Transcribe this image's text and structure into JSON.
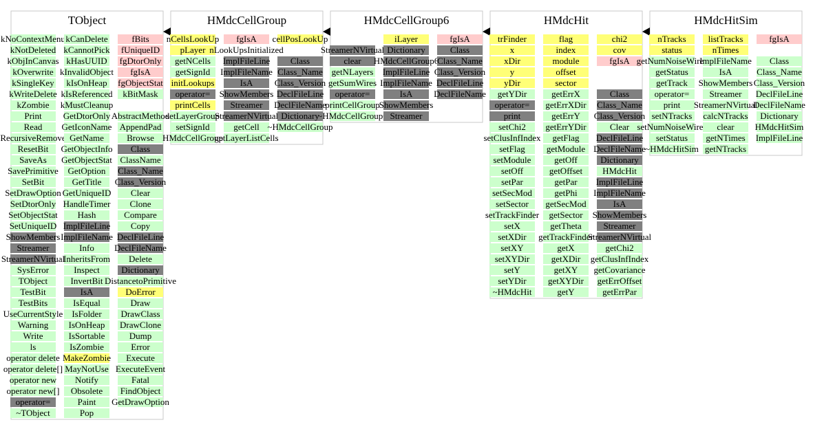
{
  "classes": [
    {
      "name": "TObject",
      "columns": [
        [
          [
            {
              "color": "#ccffcc",
              "items": [
                "kNoContextMenu",
                "kNotDeleted",
                "kObjInCanvas",
                "kOverwrite",
                "kSingleKey",
                "kWriteDelete",
                "kZombie",
                "Print",
                "Read",
                "RecursiveRemove",
                "ResetBit",
                "SaveAs",
                "SavePrimitive",
                "SetBit",
                "SetDrawOption",
                "SetDtorOnly",
                "SetObjectStat",
                "SetUniqueID"
              ]
            },
            {
              "color": "#808080",
              "items": [
                "ShowMembers",
                "Streamer",
                "StreamerNVirtual"
              ]
            },
            {
              "color": "#ccffcc",
              "items": [
                "SysError",
                "TObject",
                "TestBit",
                "TestBits",
                "UseCurrentStyle",
                "Warning",
                "Write",
                "ls",
                "operator delete",
                "operator delete[]",
                "operator new",
                "operator new[]"
              ]
            },
            {
              "color": "#808080",
              "items": [
                "operator="
              ]
            },
            {
              "color": "#ccffcc",
              "items": [
                "~TObject"
              ]
            }
          ]
        ],
        [
          [
            {
              "color": "#ccffcc",
              "items": [
                "kCanDelete",
                "kCannotPick",
                "kHasUUID",
                "kInvalidObject",
                "kIsOnHeap",
                "kIsReferenced",
                "kMustCleanup",
                "GetDtorOnly",
                "GetIconName",
                "GetName",
                "GetObjectInfo",
                "GetObjectStat",
                "GetOption",
                "GetTitle",
                "GetUniqueID",
                "HandleTimer",
                "Hash"
              ]
            },
            {
              "color": "#808080",
              "items": [
                "ImplFileLine",
                "ImplFileName"
              ]
            },
            {
              "color": "#ccffcc",
              "items": [
                "Info",
                "InheritsFrom",
                "Inspect",
                "InvertBit"
              ]
            },
            {
              "color": "#808080",
              "items": [
                "IsA"
              ]
            },
            {
              "color": "#ccffcc",
              "items": [
                "IsEqual",
                "IsFolder",
                "IsOnHeap",
                "IsSortable",
                "IsZombie"
              ]
            },
            {
              "color": "#ffff77",
              "items": [
                "MakeZombie"
              ]
            },
            {
              "color": "#ccffcc",
              "items": [
                "MayNotUse",
                "Notify",
                "Obsolete",
                "Paint",
                "Pop"
              ]
            }
          ]
        ],
        [
          [
            {
              "color": "#ffcccc",
              "items": [
                "fBits",
                "fUniqueID",
                "fgDtorOnly",
                "fgIsA",
                "fgObjectStat"
              ]
            },
            {
              "color": "#ccffcc",
              "items": [
                "kBitMask"
              ]
            }
          ],
          [
            {
              "color": "#ccffcc",
              "items": [
                "AbstractMethod",
                "AppendPad",
                "Browse"
              ]
            },
            {
              "color": "#808080",
              "items": [
                "Class"
              ]
            },
            {
              "color": "#ccffcc",
              "items": [
                "ClassName"
              ]
            },
            {
              "color": "#808080",
              "items": [
                "Class_Name",
                "Class_Version"
              ]
            },
            {
              "color": "#ccffcc",
              "items": [
                "Clear",
                "Clone",
                "Compare",
                "Copy"
              ]
            },
            {
              "color": "#808080",
              "items": [
                "DeclFileLine",
                "DeclFileName"
              ]
            },
            {
              "color": "#ccffcc",
              "items": [
                "Delete"
              ]
            },
            {
              "color": "#808080",
              "items": [
                "Dictionary"
              ]
            },
            {
              "color": "#ccffcc",
              "items": [
                "DistancetoPrimitive"
              ]
            },
            {
              "color": "#ffff77",
              "items": [
                "DoError"
              ]
            },
            {
              "color": "#ccffcc",
              "items": [
                "Draw",
                "DrawClass",
                "DrawClone",
                "Dump",
                "Error",
                "Execute",
                "ExecuteEvent",
                "Fatal",
                "FindObject",
                "GetDrawOption"
              ]
            }
          ]
        ]
      ]
    },
    {
      "name": "HMdcCellGroup",
      "columns": [
        [
          [
            {
              "color": "#ffff77",
              "items": [
                "nCellsLookUp",
                "pLayer"
              ]
            },
            {
              "color": "#ccffcc",
              "items": [
                "getNCells",
                "getSignId"
              ]
            },
            {
              "color": "#ffff77",
              "items": [
                "initLookups"
              ]
            },
            {
              "color": "#808080",
              "items": [
                "operator="
              ]
            },
            {
              "color": "#ffff77",
              "items": [
                "printCells"
              ]
            },
            {
              "color": "#ccffcc",
              "items": [
                "setLayerGroup",
                "setSignId",
                "HMdcCellGroup"
              ]
            }
          ]
        ],
        [
          [
            {
              "color": "#ffcccc",
              "items": [
                "fgIsA"
              ]
            },
            {
              "color": "#ffffff",
              "items": [
                "nLookUpsInitialized"
              ]
            },
            {
              "color": "#808080",
              "items": [
                "ImplFileLine",
                "ImplFileName",
                "IsA",
                "ShowMembers",
                "Streamer",
                "StreamerNVirtual"
              ]
            },
            {
              "color": "#ccffcc",
              "items": [
                "getCell",
                "getLayerListCells"
              ]
            }
          ]
        ],
        [
          [
            {
              "color": "#ffff77",
              "items": [
                "cellPosLookUp"
              ]
            }
          ],
          [
            {
              "color": "#808080",
              "items": [
                "Class",
                "Class_Name",
                "Class_Version",
                "DeclFileLine",
                "DeclFileName",
                "Dictionary"
              ]
            },
            {
              "color": "#ccffcc",
              "items": [
                "~HMdcCellGroup"
              ]
            }
          ]
        ]
      ]
    },
    {
      "name": "HMdcCellGroup6",
      "columns": [
        [
          [],
          [
            {
              "color": "#808080",
              "items": [
                "StreamerNVirtual",
                "clear"
              ]
            },
            {
              "color": "#ccffcc",
              "items": [
                "getNLayers",
                "getSumWires"
              ]
            },
            {
              "color": "#808080",
              "items": [
                "operator="
              ]
            },
            {
              "color": "#ccffcc",
              "items": [
                "printCellGroup",
                "~HMdcCellGroup6"
              ]
            }
          ]
        ],
        [
          [
            {
              "color": "#ffff77",
              "items": [
                "iLayer"
              ]
            },
            {
              "color": "#808080",
              "items": [
                "Dictionary",
                "HMdcCellGroup6",
                "ImplFileLine",
                "ImplFileName",
                "IsA",
                "ShowMembers",
                "Streamer"
              ]
            }
          ]
        ],
        [
          [
            {
              "color": "#ffcccc",
              "items": [
                "fgIsA"
              ]
            },
            {
              "color": "#808080",
              "items": [
                "Class",
                "Class_Name",
                "Class_Version",
                "DeclFileLine",
                "DeclFileName"
              ]
            }
          ]
        ]
      ]
    },
    {
      "name": "HMdcHit",
      "columns": [
        [
          [
            {
              "color": "#ffff77",
              "items": [
                "trFinder",
                "x",
                "xDir",
                "y",
                "yDir"
              ]
            },
            {
              "color": "#ccffcc",
              "items": [
                "getYDir"
              ]
            },
            {
              "color": "#808080",
              "items": [
                "operator=",
                "print"
              ]
            },
            {
              "color": "#ccffcc",
              "items": [
                "setChi2",
                "setClusInfIndex",
                "setFlag",
                "setModule",
                "setOff",
                "setPar",
                "setSecMod",
                "setSector",
                "setTrackFinder",
                "setX",
                "setXDir",
                "setXY",
                "setXYDir",
                "setY",
                "setYDir",
                "~HMdcHit"
              ]
            }
          ]
        ],
        [
          [
            {
              "color": "#ffff77",
              "items": [
                "flag",
                "index",
                "module",
                "offset",
                "sector"
              ]
            },
            {
              "color": "#ccffcc",
              "items": [
                "getErrX",
                "getErrXDir",
                "getErrY",
                "getErrYDir",
                "getFlag",
                "getModule",
                "getOff",
                "getOffset",
                "getPar",
                "getPhi",
                "getSecMod",
                "getSector",
                "getTheta",
                "getTrackFinder",
                "getX",
                "getXDir",
                "getXY",
                "getXYDir",
                "getY"
              ]
            }
          ]
        ],
        [
          [
            {
              "color": "#ffff77",
              "items": [
                "chi2",
                "cov"
              ]
            },
            {
              "color": "#ffcccc",
              "items": [
                "fgIsA"
              ]
            }
          ],
          [],
          [
            {
              "color": "#808080",
              "items": [
                "Class",
                "Class_Name",
                "Class_Version"
              ]
            },
            {
              "color": "#ccffcc",
              "items": [
                "Clear"
              ]
            },
            {
              "color": "#808080",
              "items": [
                "DeclFileLine",
                "DeclFileName",
                "Dictionary"
              ]
            },
            {
              "color": "#ccffcc",
              "items": [
                "HMdcHit"
              ]
            },
            {
              "color": "#808080",
              "items": [
                "ImplFileLine",
                "ImplFileName",
                "IsA",
                "ShowMembers",
                "Streamer",
                "StreamerNVirtual"
              ]
            },
            {
              "color": "#ccffcc",
              "items": [
                "getChi2",
                "getClusInfIndex",
                "getCovariance",
                "getErrOffset",
                "getErrPar"
              ]
            }
          ]
        ]
      ]
    },
    {
      "name": "HMdcHitSim",
      "columns": [
        [
          [
            {
              "color": "#ffff77",
              "items": [
                "nTracks",
                "status"
              ]
            },
            {
              "color": "#ccffcc",
              "items": [
                "getNumNoiseWires",
                "getStatus",
                "getTrack",
                "operator=",
                "print",
                "setNTracks",
                "setNumNoiseWires",
                "setStatus",
                "~HMdcHitSim"
              ]
            }
          ]
        ],
        [
          [
            {
              "color": "#ffff77",
              "items": [
                "listTracks",
                "nTimes"
              ]
            },
            {
              "color": "#ccffcc",
              "items": [
                "ImplFileName",
                "IsA",
                "ShowMembers",
                "Streamer",
                "StreamerNVirtual",
                "calcNTracks",
                "clear",
                "getNTimes",
                "getNTracks"
              ]
            }
          ]
        ],
        [
          [
            {
              "color": "#ffcccc",
              "items": [
                "fgIsA"
              ]
            }
          ],
          [
            {
              "color": "#ccffcc",
              "items": [
                "Class",
                "Class_Name",
                "Class_Version",
                "DeclFileLine",
                "DeclFileName",
                "Dictionary",
                "HMdcHitSim",
                "ImplFileLine"
              ]
            }
          ]
        ]
      ]
    }
  ]
}
